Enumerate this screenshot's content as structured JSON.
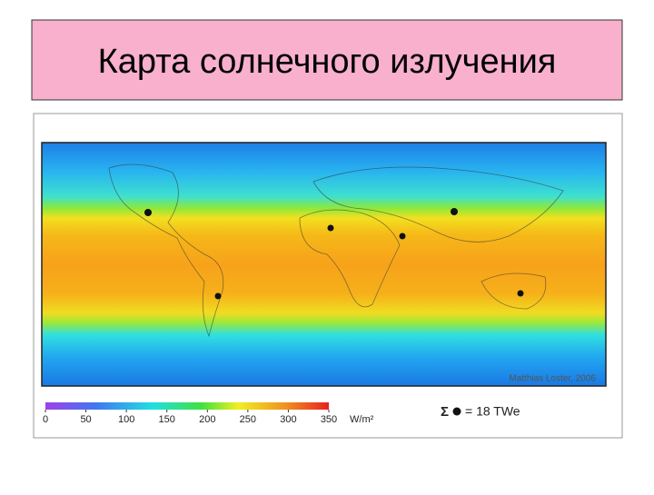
{
  "title": "Карта солнечного излучения",
  "map": {
    "credit": "Matthias Loster, 2006"
  },
  "legend": {
    "ticks": [
      0,
      50,
      100,
      150,
      200,
      250,
      300,
      350
    ],
    "unit": "W/m²",
    "sum_symbol": "Σ",
    "sum_text": "= 18 TWe"
  }
}
